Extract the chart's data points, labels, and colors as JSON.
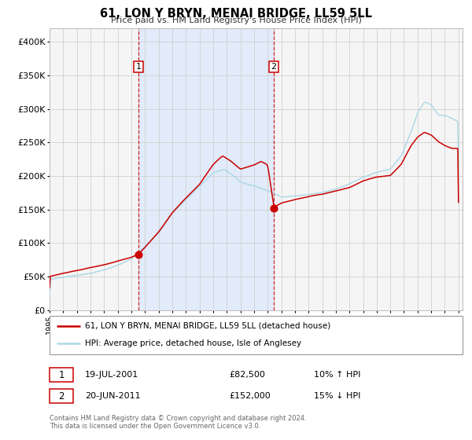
{
  "title": "61, LON Y BRYN, MENAI BRIDGE, LL59 5LL",
  "subtitle": "Price paid vs. HM Land Registry's House Price Index (HPI)",
  "hpi_color": "#add8e6",
  "price_color": "#cc0000",
  "background_color": "#f5f5f5",
  "grid_color": "#d0d0d0",
  "shaded_region_color": "#cce0ff",
  "sale1_x": 2001.538,
  "sale1_price": 82500,
  "sale2_x": 2011.458,
  "sale2_price": 152000,
  "xmin": 1995.0,
  "xmax": 2025.3,
  "ymin": 0,
  "ymax": 420000,
  "yticks": [
    0,
    50000,
    100000,
    150000,
    200000,
    250000,
    300000,
    350000,
    400000
  ],
  "ytick_labels": [
    "£0",
    "£50K",
    "£100K",
    "£150K",
    "£200K",
    "£250K",
    "£300K",
    "£350K",
    "£400K"
  ],
  "legend_line1": "61, LON Y BRYN, MENAI BRIDGE, LL59 5LL (detached house)",
  "legend_line2": "HPI: Average price, detached house, Isle of Anglesey",
  "sale1_date_str": "19-JUL-2001",
  "sale1_price_str": "£82,500",
  "sale1_hpi_str": "10% ↑ HPI",
  "sale2_date_str": "20-JUN-2011",
  "sale2_price_str": "£152,000",
  "sale2_hpi_str": "15% ↓ HPI",
  "footer1": "Contains HM Land Registry data © Crown copyright and database right 2024.",
  "footer2": "This data is licensed under the Open Government Licence v3.0."
}
